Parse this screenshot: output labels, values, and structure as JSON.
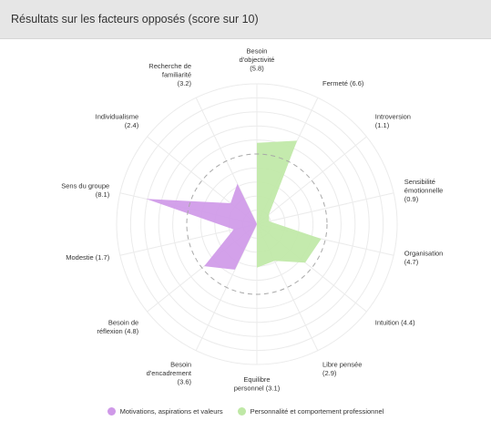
{
  "header": {
    "title": "Résultats sur les facteurs opposés (score sur 10)"
  },
  "colors": {
    "motivations": "#cf99e8",
    "personnalite": "#bfe8a6",
    "grid": "#ebebeb",
    "midline": "#a8a8a8",
    "header_bg": "#e6e6e6"
  },
  "chart_data": {
    "type": "radar",
    "title": "Résultats sur les facteurs opposés (score sur 10)",
    "range": [
      0,
      10
    ],
    "grid": true,
    "midline_value": 5,
    "legend_position": "bottom-center",
    "axes": [
      {
        "label": [
          "Besoin",
          "d'objectivité",
          "(5.8)"
        ],
        "value": 5.8,
        "series": 1
      },
      {
        "label": [
          "Fermeté (6.6)"
        ],
        "value": 6.6,
        "series": 1
      },
      {
        "label": [
          "Introversion",
          "(1.1)"
        ],
        "value": 1.1,
        "series": 1
      },
      {
        "label": [
          "Sensibilité",
          "émotionnelle",
          "(0.9)"
        ],
        "value": 0.9,
        "series": 1
      },
      {
        "label": [
          "Organisation",
          "(4.7)"
        ],
        "value": 4.7,
        "series": 1
      },
      {
        "label": [
          "Intuition (4.4)"
        ],
        "value": 4.4,
        "series": 1
      },
      {
        "label": [
          "Libre pensée",
          "(2.9)"
        ],
        "value": 2.9,
        "series": 1
      },
      {
        "label": [
          "Equilibre",
          "personnel (3.1)"
        ],
        "value": 3.1,
        "series": 1
      },
      {
        "label": [
          "Besoin",
          "d'encadrement",
          "(3.6)"
        ],
        "value": 3.6,
        "series": 0
      },
      {
        "label": [
          "Besoin de",
          "réflexion (4.8)"
        ],
        "value": 4.8,
        "series": 0
      },
      {
        "label": [
          "Modestie (1.7)"
        ],
        "value": 1.7,
        "series": 0
      },
      {
        "label": [
          "Sens du groupe",
          "(8.1)"
        ],
        "value": 8.1,
        "series": 0
      },
      {
        "label": [
          "Individualisme",
          "(2.4)"
        ],
        "value": 2.4,
        "series": 0
      },
      {
        "label": [
          "Recherche de",
          "familiarité",
          "(3.2)"
        ],
        "value": 3.2,
        "series": 0
      }
    ],
    "series": [
      {
        "name": "Motivations, aspirations et valeurs",
        "color": "#cf99e8"
      },
      {
        "name": "Personnalité et comportement professionnel",
        "color": "#bfe8a6"
      }
    ]
  },
  "legend": {
    "items": [
      {
        "label": "Motivations, aspirations et valeurs"
      },
      {
        "label": "Personnalité et comportement professionnel"
      }
    ]
  }
}
